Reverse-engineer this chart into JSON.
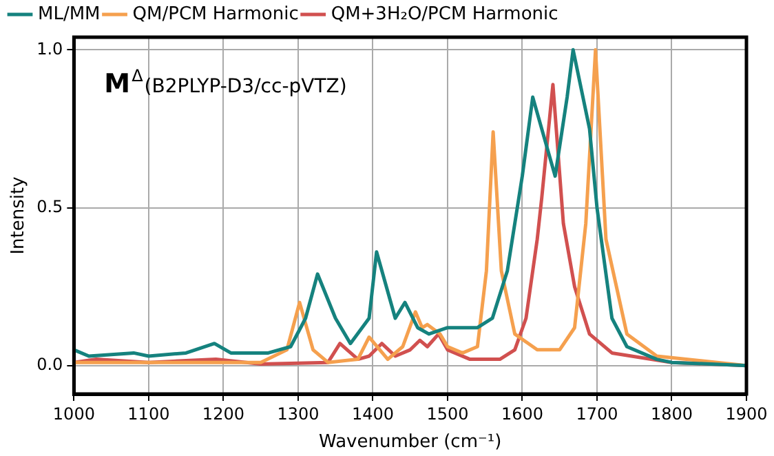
{
  "chart_data": {
    "type": "line",
    "xlabel": "Wavenumber (cm⁻¹)",
    "ylabel": "Intensity",
    "annotations": [
      "M$^{Δ}$(B2PLYP-D3/cc-pVTZ)"
    ],
    "xlim": [
      1000,
      1900
    ],
    "xticks": [
      1000,
      1100,
      1200,
      1300,
      1400,
      1500,
      1600,
      1700,
      1800,
      1900
    ],
    "ylim": [
      -0.09,
      1.04
    ],
    "yticks": [
      {
        "value": 0,
        "label": "0.0"
      },
      {
        "value": 0.5,
        "label": "0.5"
      },
      {
        "value": 1,
        "label": "1.0"
      }
    ],
    "grid": true,
    "legend": "top left",
    "marker": "none",
    "line_style": "solid",
    "series": [
      {
        "name": "ML/MM",
        "color": "#15827e",
        "x": [
          1000,
          1020,
          1080,
          1100,
          1150,
          1188,
          1210,
          1260,
          1290,
          1310,
          1326,
          1350,
          1370,
          1395,
          1405,
          1430,
          1443,
          1460,
          1475,
          1500,
          1540,
          1560,
          1580,
          1600,
          1614,
          1644,
          1660,
          1668,
          1690,
          1700,
          1720,
          1740,
          1780,
          1800,
          1900
        ],
        "values": [
          0.05,
          0.03,
          0.04,
          0.03,
          0.04,
          0.07,
          0.04,
          0.04,
          0.06,
          0.15,
          0.29,
          0.15,
          0.07,
          0.15,
          0.36,
          0.15,
          0.2,
          0.12,
          0.1,
          0.12,
          0.12,
          0.15,
          0.3,
          0.6,
          0.85,
          0.6,
          0.85,
          1.0,
          0.75,
          0.5,
          0.15,
          0.06,
          0.02,
          0.01,
          0.0
        ]
      },
      {
        "name": "QM/PCM Harmonic",
        "color": "#f5a04e",
        "x": [
          1000,
          1250,
          1285,
          1302,
          1320,
          1340,
          1380,
          1395,
          1420,
          1440,
          1457,
          1466,
          1473,
          1490,
          1500,
          1520,
          1540,
          1552,
          1561,
          1572,
          1590,
          1620,
          1650,
          1670,
          1685,
          1698,
          1712,
          1740,
          1780,
          1900
        ],
        "values": [
          0.01,
          0.01,
          0.05,
          0.2,
          0.05,
          0.01,
          0.02,
          0.09,
          0.02,
          0.06,
          0.17,
          0.12,
          0.13,
          0.1,
          0.06,
          0.04,
          0.06,
          0.3,
          0.74,
          0.3,
          0.1,
          0.05,
          0.05,
          0.12,
          0.45,
          1.0,
          0.4,
          0.1,
          0.03,
          0.0
        ]
      },
      {
        "name": "QM+3H₂O/PCM Harmonic",
        "color": "#d1504f",
        "x": [
          1000,
          1030,
          1100,
          1190,
          1250,
          1340,
          1356,
          1380,
          1395,
          1412,
          1430,
          1450,
          1463,
          1473,
          1488,
          1500,
          1530,
          1570,
          1590,
          1605,
          1620,
          1626,
          1641,
          1655,
          1670,
          1690,
          1720,
          1800,
          1900
        ],
        "values": [
          0.01,
          0.02,
          0.01,
          0.02,
          0.005,
          0.01,
          0.07,
          0.02,
          0.03,
          0.07,
          0.03,
          0.05,
          0.08,
          0.06,
          0.1,
          0.05,
          0.02,
          0.02,
          0.05,
          0.15,
          0.4,
          0.53,
          0.89,
          0.45,
          0.25,
          0.1,
          0.04,
          0.01,
          0.0
        ]
      }
    ]
  }
}
